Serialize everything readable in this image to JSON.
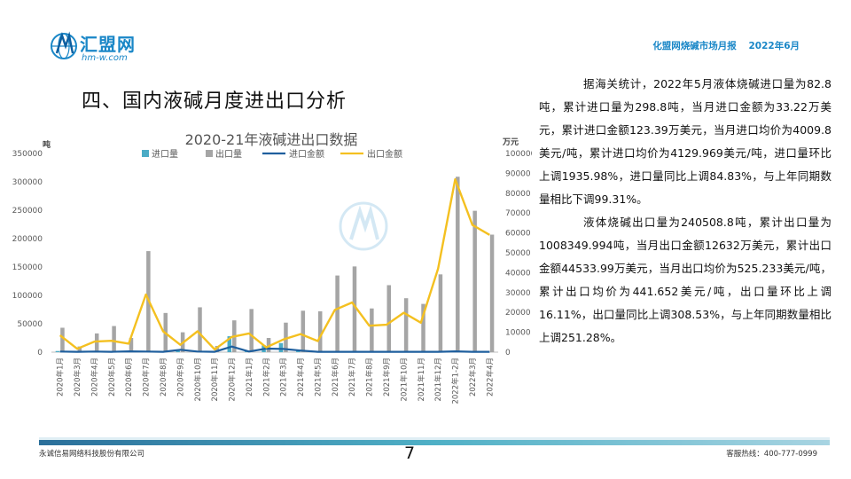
{
  "brand": {
    "name": "汇盟网",
    "url": "hm-w.com"
  },
  "header": {
    "report": "化盟网烧碱市场月报",
    "period": "2022年6月"
  },
  "section_title": "四、国内液碱月度进出口分析",
  "analysis": [
    "据海关统计，2022年5月液体烧碱进口量为82.8吨，累计进口量为298.8吨，当月进口金额为33.22万美元，累计进口金额123.39万美元，当月进口均价为4009.8美元/吨，累计进口均价为4129.969美元/吨，进口量环比上调1935.98%，进口量同比上调84.83%，与上年同期数量相比下调99.31%。",
    "液体烧碱出口量为240508.8吨，累计出口量为1008349.994吨，当月出口金额12632万美元，累计出口金额44533.99万美元，当月出口均价为525.233美元/吨，累计出口均价为441.652美元/吨，出口量环比上调16.11%，出口量同比上调308.53%，与上年同期数量相比上调251.28%。"
  ],
  "footer": {
    "company": "永诚信易网络科技股份有限公司",
    "page": "7",
    "hotline": "客服热线：400-777-0999"
  },
  "colors": {
    "brand": "#1a87c7",
    "import_qty": "#4bacc6",
    "export_qty": "#a5a5a5",
    "import_amount": "#1f5f9e",
    "export_amount": "#f4c020"
  },
  "chart_data": {
    "type": "bar",
    "title": "2020-21年液碱进出口数据",
    "ylabel_left": "吨",
    "ylabel_right": "万元",
    "ylim_left": [
      0,
      350000
    ],
    "ylim_right": [
      0,
      100000
    ],
    "yticks_left": [
      "0",
      "50000",
      "100000",
      "150000",
      "200000",
      "250000",
      "300000",
      "350000"
    ],
    "yticks_right": [
      "0",
      "10000",
      "20000",
      "30000",
      "40000",
      "50000",
      "60000",
      "70000",
      "80000",
      "90000",
      "100000"
    ],
    "legend_position": "top",
    "categories": [
      "2020年1月",
      "2020年3月",
      "2020年4月",
      "2020年5月",
      "2020年6月",
      "2020年7月",
      "2020年8月",
      "2020年9月",
      "2020年10月",
      "2020年11月",
      "2020年12月",
      "2021年1月",
      "2021年2月",
      "2021年3月",
      "2021年4月",
      "2021年5月",
      "2021年6月",
      "2021年7月",
      "2021年8月",
      "2021年9月",
      "2021年10月",
      "2021年11月",
      "2021年12月",
      "2022年1-2月",
      "2022年3月",
      "2022年4月"
    ],
    "series": [
      {
        "name": "进口量",
        "type": "bar",
        "axis": "left",
        "values": [
          2000,
          1000,
          1500,
          1000,
          1500,
          2000,
          1000,
          2500,
          1500,
          1000,
          28000,
          1500,
          12000,
          16000,
          3000,
          1000,
          500,
          500,
          500,
          500,
          500,
          500,
          500,
          1000,
          500,
          500
        ]
      },
      {
        "name": "出口量",
        "type": "bar",
        "axis": "left",
        "values": [
          43000,
          10000,
          33000,
          46000,
          25000,
          178000,
          69000,
          35000,
          79000,
          11000,
          56000,
          76000,
          25000,
          52000,
          73000,
          72000,
          135000,
          151000,
          77000,
          118000,
          95000,
          85000,
          137000,
          309000,
          249000,
          207000
        ]
      },
      {
        "name": "进口金额",
        "type": "line",
        "axis": "right",
        "values": [
          300,
          200,
          300,
          200,
          400,
          300,
          200,
          1200,
          300,
          200,
          2800,
          300,
          1800,
          1600,
          800,
          200,
          200,
          200,
          200,
          200,
          200,
          200,
          200,
          400,
          200,
          200
        ]
      },
      {
        "name": "出口金额",
        "type": "line",
        "axis": "right",
        "values": [
          8500,
          1700,
          5300,
          5700,
          4300,
          29000,
          10500,
          3700,
          10500,
          1400,
          7700,
          9400,
          2400,
          6400,
          9100,
          5600,
          21300,
          25000,
          13300,
          13800,
          19800,
          14800,
          42000,
          87000,
          64000,
          59000
        ]
      }
    ]
  }
}
